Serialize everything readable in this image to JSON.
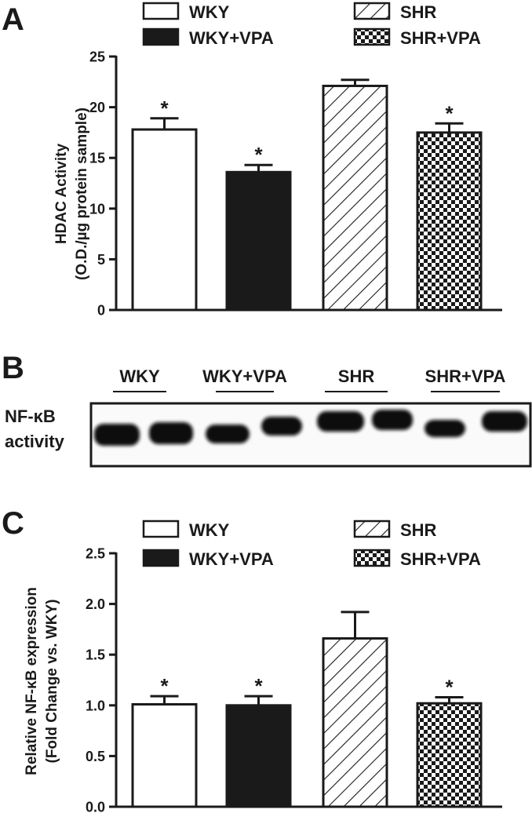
{
  "chart_data": [
    {
      "type": "bar",
      "panel": "A",
      "ylabel_line1": "HDAC Activity",
      "ylabel_line2": "(O.D./µg protein sample)",
      "ylim": [
        0,
        25
      ],
      "yticks": [
        0,
        5,
        10,
        15,
        20,
        25
      ],
      "ytick_labels": [
        "0",
        "5",
        "10",
        "15",
        "20",
        "25"
      ],
      "legend_position": "top",
      "categories": [
        "WKY",
        "WKY+VPA",
        "SHR",
        "SHR+VPA"
      ],
      "values": [
        17.8,
        13.6,
        22.1,
        17.5
      ],
      "errors": [
        1.1,
        0.7,
        0.6,
        0.9
      ],
      "significance": [
        "*",
        "*",
        "",
        "*"
      ],
      "fills": [
        "white",
        "black",
        "hatch",
        "checker"
      ],
      "grid": false
    },
    {
      "type": "table",
      "panel": "B",
      "row_label_line1": "NF-κB",
      "row_label_line2": "activity",
      "lane_groups": [
        "WKY",
        "WKY+VPA",
        "SHR",
        "SHR+VPA"
      ]
    },
    {
      "type": "bar",
      "panel": "C",
      "ylabel_line1": "Relative NF-κB expression",
      "ylabel_line2": "(Fold Change vs. WKY)",
      "ylim": [
        0,
        2.5
      ],
      "yticks": [
        0,
        0.5,
        1.0,
        1.5,
        2.0,
        2.5
      ],
      "ytick_labels": [
        "0.0",
        "0.5",
        "1.0",
        "1.5",
        "2.0",
        "2.5"
      ],
      "legend_position": "top",
      "categories": [
        "WKY",
        "WKY+VPA",
        "SHR",
        "SHR+VPA"
      ],
      "values": [
        1.01,
        1.0,
        1.66,
        1.02
      ],
      "errors": [
        0.08,
        0.09,
        0.26,
        0.06
      ],
      "significance": [
        "*",
        "*",
        "",
        "*"
      ],
      "fills": [
        "white",
        "black",
        "hatch",
        "checker"
      ],
      "grid": false
    }
  ],
  "colors": {
    "ink": "#1a1a1a",
    "background": "#ffffff",
    "blot_band": "#0d0d0d",
    "blot_bg": "#fafafa"
  }
}
